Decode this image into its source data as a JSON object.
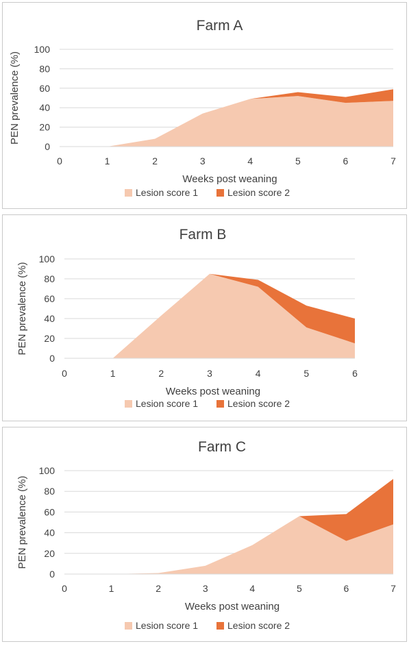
{
  "chart_data": [
    {
      "type": "area",
      "stacked": true,
      "title": "Farm A",
      "xlabel": "Weeks post weaning",
      "ylabel": "PEN prevalence (%)",
      "x": [
        0,
        1,
        2,
        3,
        4,
        5,
        6,
        7
      ],
      "xlim": [
        0,
        7
      ],
      "ylim": [
        0,
        100
      ],
      "yticks": [
        0,
        20,
        40,
        60,
        80,
        100
      ],
      "grid": true,
      "legend_position": "bottom",
      "series": [
        {
          "name": "Lesion score 1",
          "color": "#f6c9b0",
          "values": [
            0,
            0,
            8,
            34,
            49,
            52,
            45,
            47
          ]
        },
        {
          "name": "Lesion score 2",
          "color": "#e8733a",
          "values": [
            0,
            0,
            0,
            0,
            0,
            4,
            6,
            12
          ]
        }
      ]
    },
    {
      "type": "area",
      "stacked": true,
      "title": "Farm B",
      "xlabel": "Weeks post weaning",
      "ylabel": "PEN prevalence (%)",
      "x": [
        0,
        1,
        2,
        3,
        4,
        5,
        6
      ],
      "xlim": [
        0,
        6
      ],
      "ylim": [
        0,
        100
      ],
      "yticks": [
        0,
        20,
        40,
        60,
        80,
        100
      ],
      "grid": true,
      "legend_position": "bottom",
      "series": [
        {
          "name": "Lesion score 1",
          "color": "#f6c9b0",
          "values": [
            0,
            0,
            43,
            85,
            72,
            31,
            15
          ]
        },
        {
          "name": "Lesion score 2",
          "color": "#e8733a",
          "values": [
            0,
            0,
            0,
            0,
            7,
            22,
            25
          ]
        }
      ]
    },
    {
      "type": "area",
      "stacked": true,
      "title": "Farm C",
      "xlabel": "Weeks post weaning",
      "ylabel": "PEN prevalence (%)",
      "x": [
        0,
        1,
        2,
        3,
        4,
        5,
        6,
        7
      ],
      "xlim": [
        0,
        7
      ],
      "ylim": [
        0,
        100
      ],
      "yticks": [
        0,
        20,
        40,
        60,
        80,
        100
      ],
      "grid": true,
      "legend_position": "bottom",
      "series": [
        {
          "name": "Lesion score 1",
          "color": "#f6c9b0",
          "values": [
            0,
            0,
            1,
            8,
            28,
            56,
            32,
            48
          ]
        },
        {
          "name": "Lesion score 2",
          "color": "#e8733a",
          "values": [
            0,
            0,
            0,
            0,
            0,
            0,
            26,
            44
          ]
        }
      ]
    }
  ]
}
